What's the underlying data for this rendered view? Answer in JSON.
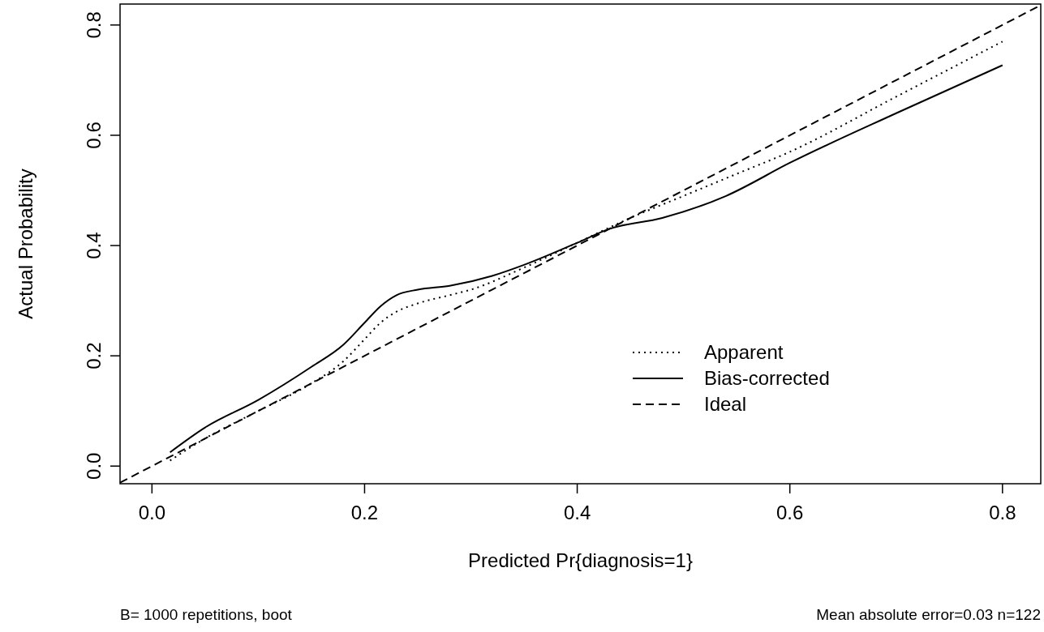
{
  "chart_data": {
    "type": "line",
    "xlabel": "Predicted Pr{diagnosis=1}",
    "ylabel": "Actual Probability",
    "xlim": [
      -0.03,
      0.836
    ],
    "ylim": [
      -0.032,
      0.838
    ],
    "xticks": [
      {
        "value": 0,
        "label": "0.0"
      },
      0.2,
      0.4,
      0.6,
      0.8
    ],
    "yticks": [
      {
        "value": 0,
        "label": "0.0"
      },
      0.2,
      0.4,
      0.6,
      0.8
    ],
    "grid": false,
    "legend": "right",
    "series": [
      {
        "name": "Apparent",
        "color": "#000000",
        "line_style": "dotted",
        "x": [
          0.017,
          0.05,
          0.1,
          0.15,
          0.18,
          0.2,
          0.215,
          0.23,
          0.25,
          0.28,
          0.3,
          0.35,
          0.4,
          0.45,
          0.5,
          0.55,
          0.6,
          0.7,
          0.8
        ],
        "values": [
          0.01,
          0.05,
          0.1,
          0.15,
          0.19,
          0.23,
          0.26,
          0.28,
          0.295,
          0.31,
          0.32,
          0.36,
          0.405,
          0.45,
          0.49,
          0.53,
          0.57,
          0.67,
          0.77
        ]
      },
      {
        "name": "Bias-corrected",
        "color": "#000000",
        "line_style": "solid",
        "x": [
          0.017,
          0.05,
          0.1,
          0.15,
          0.18,
          0.2,
          0.215,
          0.23,
          0.25,
          0.28,
          0.32,
          0.35,
          0.4,
          0.43,
          0.48,
          0.54,
          0.6,
          0.7,
          0.8
        ],
        "values": [
          0.025,
          0.07,
          0.12,
          0.18,
          0.22,
          0.26,
          0.29,
          0.31,
          0.32,
          0.327,
          0.345,
          0.365,
          0.405,
          0.43,
          0.45,
          0.49,
          0.55,
          0.64,
          0.727
        ]
      },
      {
        "name": "Ideal",
        "color": "#000000",
        "line_style": "dashed",
        "x": [
          -0.03,
          0.836
        ],
        "values": [
          -0.03,
          0.836
        ]
      }
    ],
    "annotations": [
      "B= 1000 repetitions, boot",
      "Mean absolute error=0.03 n=122"
    ]
  }
}
